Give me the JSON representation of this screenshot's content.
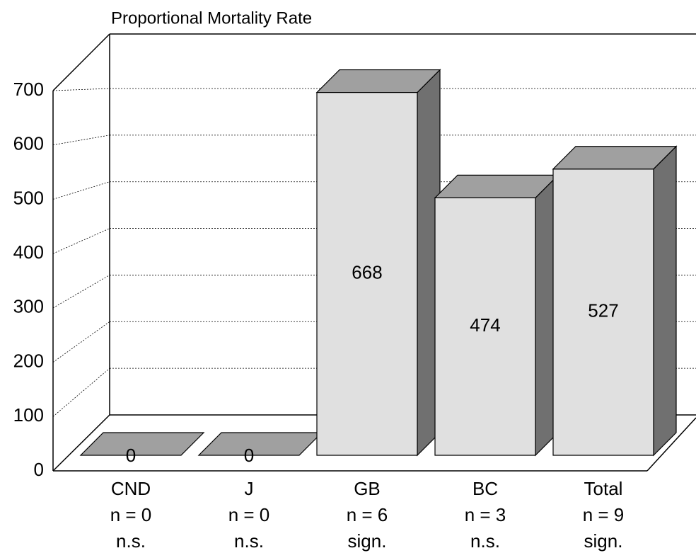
{
  "chart_data": {
    "type": "bar3d",
    "title": "Proportional Mortality Rate",
    "categories": [
      [
        "CND",
        "n = 0",
        "n.s."
      ],
      [
        "J",
        "n = 0",
        "n.s."
      ],
      [
        "GB",
        "n = 6",
        "sign."
      ],
      [
        "BC",
        "n = 3",
        "n.s."
      ],
      [
        "Total",
        "n = 9",
        "sign."
      ]
    ],
    "values": [
      0,
      0,
      668,
      474,
      527
    ],
    "color": "#e0e0e0",
    "ylim": [
      0,
      700
    ],
    "yticks": [
      0,
      100,
      200,
      300,
      400,
      500,
      600,
      700
    ],
    "grid": true
  }
}
